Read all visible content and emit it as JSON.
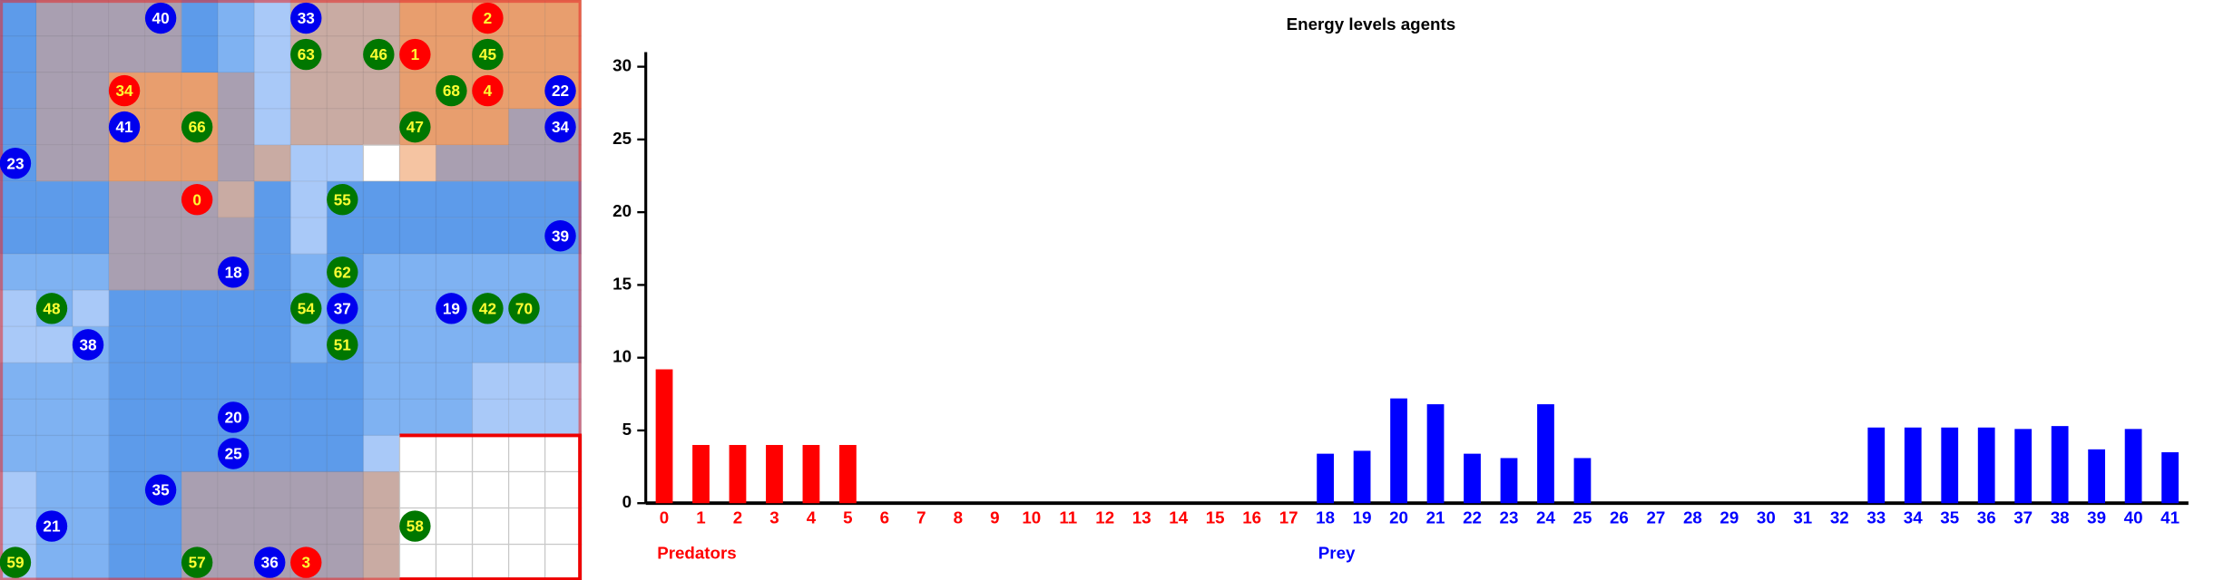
{
  "map": {
    "agents": [
      {
        "label": "40",
        "color": "#0000ee"
      },
      {
        "label": "33",
        "color": "#0000ee"
      },
      {
        "label": "2",
        "color": "#ff0000"
      },
      {
        "label": "63",
        "color": "#007700"
      },
      {
        "label": "46",
        "color": "#007700"
      },
      {
        "label": "1",
        "color": "#ff0000"
      },
      {
        "label": "45",
        "color": "#007700"
      },
      {
        "label": "34",
        "color": "#ff0000"
      },
      {
        "label": "68",
        "color": "#007700"
      },
      {
        "label": "4",
        "color": "#ff0000"
      },
      {
        "label": "22",
        "color": "#0000ee"
      },
      {
        "label": "41",
        "color": "#0000ee"
      },
      {
        "label": "66",
        "color": "#007700"
      },
      {
        "label": "47",
        "color": "#007700"
      },
      {
        "label": "34",
        "color": "#0000ee"
      },
      {
        "label": "23",
        "color": "#0000ee"
      },
      {
        "label": "0",
        "color": "#ff0000"
      },
      {
        "label": "55",
        "color": "#007700"
      },
      {
        "label": "39",
        "color": "#0000ee"
      },
      {
        "label": "18",
        "color": "#0000ee"
      },
      {
        "label": "62",
        "color": "#007700"
      },
      {
        "label": "48",
        "color": "#007700"
      },
      {
        "label": "54",
        "color": "#007700"
      },
      {
        "label": "37",
        "color": "#0000ee"
      },
      {
        "label": "19",
        "color": "#0000ee"
      },
      {
        "label": "42",
        "color": "#007700"
      },
      {
        "label": "70",
        "color": "#007700"
      },
      {
        "label": "38",
        "color": "#0000ee"
      },
      {
        "label": "51",
        "color": "#007700"
      },
      {
        "label": "20",
        "color": "#0000ee"
      },
      {
        "label": "25",
        "color": "#0000ee"
      },
      {
        "label": "35",
        "color": "#0000ee"
      },
      {
        "label": "21",
        "color": "#0000ee"
      },
      {
        "label": "58",
        "color": "#007700"
      },
      {
        "label": "59",
        "color": "#007700"
      },
      {
        "label": "57",
        "color": "#007700"
      },
      {
        "label": "36",
        "color": "#0000ee"
      },
      {
        "label": "3",
        "color": "#ff0000"
      }
    ]
  },
  "chart_data": {
    "type": "bar",
    "title": "Energy levels agents",
    "categories": [
      "0",
      "1",
      "2",
      "3",
      "4",
      "5",
      "6",
      "7",
      "8",
      "9",
      "10",
      "11",
      "12",
      "13",
      "14",
      "15",
      "16",
      "17",
      "18",
      "19",
      "20",
      "21",
      "22",
      "23",
      "24",
      "25",
      "26",
      "27",
      "28",
      "29",
      "30",
      "31",
      "32",
      "33",
      "34",
      "35",
      "36",
      "37",
      "38",
      "39",
      "40",
      "41"
    ],
    "series": [
      {
        "name": "Predators",
        "color": "#ff0000",
        "values": [
          9.2,
          4,
          4,
          4,
          4,
          4,
          0,
          0,
          0,
          0,
          0,
          0,
          0,
          0,
          0,
          0,
          0,
          0,
          null,
          null,
          null,
          null,
          null,
          null,
          null,
          null,
          null,
          null,
          null,
          null,
          null,
          null,
          null,
          null,
          null,
          null,
          null,
          null,
          null,
          null,
          null,
          null
        ]
      },
      {
        "name": "Prey",
        "color": "#0000ff",
        "values": [
          null,
          null,
          null,
          null,
          null,
          null,
          null,
          null,
          null,
          null,
          null,
          null,
          null,
          null,
          null,
          null,
          null,
          null,
          3.4,
          3.6,
          7.2,
          6.8,
          3.4,
          3.1,
          6.8,
          3.1,
          0,
          0,
          0,
          0,
          0,
          0,
          0,
          5.2,
          5.2,
          5.2,
          5.2,
          5.1,
          5.3,
          3.7,
          5.1,
          3.5
        ]
      }
    ],
    "ylim": [
      0,
      31
    ],
    "yticks": [
      0,
      5,
      10,
      15,
      20,
      25,
      30
    ]
  }
}
